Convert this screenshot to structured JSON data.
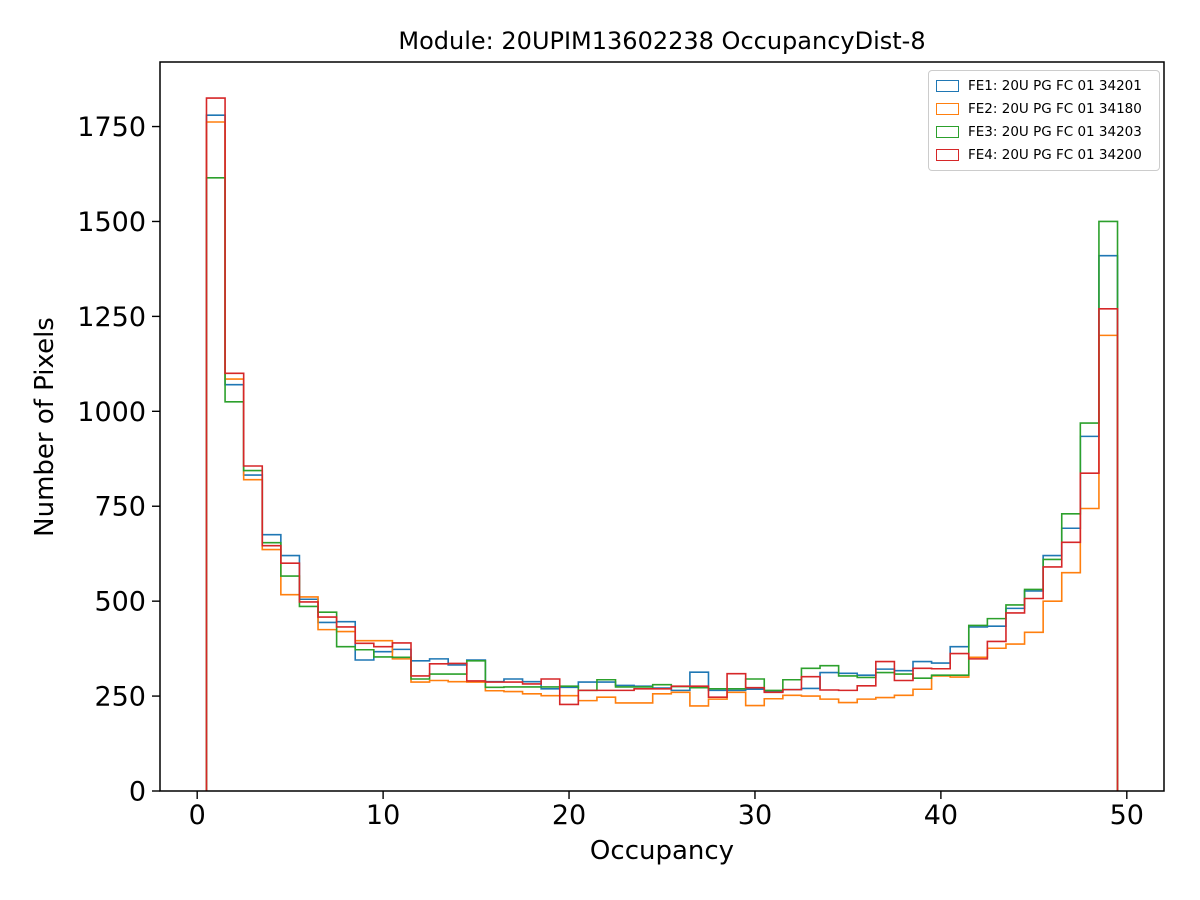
{
  "figure": {
    "background": "#ffffff"
  },
  "chart_data": {
    "type": "step-histogram",
    "title": "Module: 20UPIM13602238 OccupancyDist-8",
    "xlabel": "Occupancy",
    "ylabel": "Number of Pixels",
    "xlim": [
      -2,
      52
    ],
    "ylim": [
      0,
      1920
    ],
    "xticks": [
      0,
      10,
      20,
      30,
      40,
      50
    ],
    "yticks": [
      0,
      250,
      500,
      750,
      1000,
      1250,
      1500,
      1750
    ],
    "grid": false,
    "legend_position": "upper right",
    "bins": {
      "start": 0.5,
      "width": 1,
      "count": 49
    },
    "series": [
      {
        "name": "FE1: 20U PG FC 01 34201",
        "color": "#1f77b4",
        "values": [
          1780,
          1070,
          832,
          675,
          620,
          505,
          444,
          446,
          345,
          367,
          373,
          343,
          348,
          332,
          345,
          288,
          295,
          288,
          269,
          273,
          287,
          287,
          278,
          276,
          271,
          265,
          313,
          265,
          265,
          268,
          263,
          267,
          270,
          312,
          310,
          305,
          321,
          317,
          341,
          337,
          380,
          432,
          434,
          481,
          527,
          620,
          692,
          934,
          1410
        ]
      },
      {
        "name": "FE2: 20U PG FC 01 34180",
        "color": "#ff7f0e",
        "values": [
          1762,
          1085,
          820,
          636,
          517,
          511,
          425,
          420,
          396,
          396,
          348,
          287,
          291,
          288,
          287,
          264,
          262,
          256,
          251,
          251,
          238,
          247,
          232,
          232,
          256,
          260,
          224,
          242,
          260,
          225,
          243,
          252,
          250,
          242,
          233,
          242,
          246,
          252,
          268,
          303,
          300,
          352,
          376,
          387,
          418,
          500,
          575,
          744,
          1200
        ]
      },
      {
        "name": "FE3: 20U PG FC 01 34203",
        "color": "#2ca02c",
        "values": [
          1615,
          1025,
          844,
          654,
          566,
          486,
          471,
          380,
          372,
          353,
          352,
          295,
          308,
          308,
          343,
          273,
          274,
          274,
          274,
          276,
          265,
          293,
          274,
          274,
          280,
          275,
          272,
          269,
          269,
          295,
          265,
          293,
          323,
          330,
          303,
          299,
          312,
          308,
          297,
          305,
          305,
          436,
          454,
          490,
          531,
          610,
          730,
          969,
          1500
        ]
      },
      {
        "name": "FE4: 20U PG FC 01 34200",
        "color": "#d62728",
        "values": [
          1825,
          1100,
          856,
          646,
          600,
          498,
          458,
          432,
          389,
          380,
          390,
          303,
          335,
          336,
          290,
          287,
          287,
          282,
          295,
          228,
          265,
          265,
          265,
          269,
          269,
          276,
          276,
          247,
          309,
          272,
          260,
          267,
          301,
          266,
          265,
          277,
          341,
          291,
          323,
          322,
          362,
          348,
          394,
          469,
          507,
          590,
          655,
          837,
          1270
        ]
      }
    ]
  }
}
